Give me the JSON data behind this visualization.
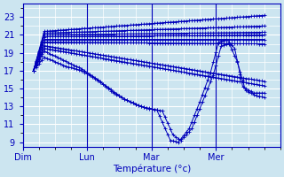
{
  "title": "",
  "xlabel": "Température (°c)",
  "ylabel": "",
  "xlim": [
    0,
    96
  ],
  "ylim": [
    8.5,
    24.5
  ],
  "yticks": [
    9,
    11,
    13,
    15,
    17,
    19,
    21,
    23
  ],
  "xtick_positions": [
    0,
    24,
    48,
    72
  ],
  "xtick_labels": [
    "Dim",
    "Lun",
    "Mar",
    "Mer"
  ],
  "bg_color": "#cce5f0",
  "plot_bg_color": "#cce5f0",
  "grid_color": "#ffffff",
  "line_color": "#0000bb",
  "markersize": 3.5,
  "curves": [
    {
      "waypoints": [
        [
          4,
          17.0
        ],
        [
          8,
          21.3
        ],
        [
          88,
          23.3
        ],
        [
          92,
          23.0
        ]
      ],
      "straight": false
    },
    {
      "waypoints": [
        [
          4,
          17.0
        ],
        [
          8,
          21.1
        ],
        [
          88,
          22.0
        ]
      ],
      "straight": true
    },
    {
      "waypoints": [
        [
          4,
          17.0
        ],
        [
          8,
          21.0
        ],
        [
          88,
          21.3
        ]
      ],
      "straight": true
    },
    {
      "waypoints": [
        [
          4,
          17.0
        ],
        [
          8,
          20.8
        ],
        [
          88,
          21.0
        ]
      ],
      "straight": true
    },
    {
      "waypoints": [
        [
          4,
          17.0
        ],
        [
          8,
          20.5
        ],
        [
          88,
          20.5
        ]
      ],
      "straight": true
    },
    {
      "waypoints": [
        [
          4,
          17.0
        ],
        [
          8,
          20.2
        ],
        [
          88,
          20.0
        ]
      ],
      "straight": true
    },
    {
      "waypoints": [
        [
          4,
          17.0
        ],
        [
          8,
          19.8
        ],
        [
          88,
          16.2
        ]
      ],
      "straight": true
    },
    {
      "waypoints": [
        [
          4,
          17.0
        ],
        [
          8,
          19.5
        ],
        [
          88,
          15.5
        ]
      ],
      "straight": true
    },
    {
      "waypoints": [
        [
          4,
          17.0
        ],
        [
          8,
          19.2
        ],
        [
          25,
          17.5
        ],
        [
          38,
          13.8
        ],
        [
          44,
          13.0
        ],
        [
          52,
          12.8
        ],
        [
          57,
          9.2
        ],
        [
          62,
          9.5
        ],
        [
          66,
          13.5
        ],
        [
          70,
          16.8
        ],
        [
          74,
          20.2
        ],
        [
          78,
          20.0
        ],
        [
          82,
          15.0
        ],
        [
          88,
          14.5
        ],
        [
          92,
          14.2
        ]
      ],
      "straight": false
    },
    {
      "waypoints": [
        [
          4,
          17.0
        ],
        [
          8,
          18.5
        ],
        [
          24,
          16.8
        ],
        [
          38,
          14.0
        ],
        [
          44,
          12.8
        ],
        [
          52,
          12.5
        ],
        [
          57,
          9.0
        ],
        [
          62,
          9.8
        ],
        [
          66,
          13.5
        ],
        [
          70,
          16.5
        ],
        [
          74,
          20.0
        ],
        [
          78,
          19.5
        ],
        [
          82,
          14.8
        ],
        [
          88,
          14.2
        ],
        [
          92,
          14.0
        ]
      ],
      "straight": false
    }
  ],
  "straight_curves": [
    [
      [
        4,
        17.0
      ],
      [
        8,
        21.3
      ],
      [
        90,
        23.2
      ]
    ],
    [
      [
        4,
        17.0
      ],
      [
        8,
        21.1
      ],
      [
        90,
        22.0
      ]
    ],
    [
      [
        4,
        17.0
      ],
      [
        8,
        21.0
      ],
      [
        90,
        21.3
      ]
    ],
    [
      [
        4,
        17.0
      ],
      [
        8,
        20.8
      ],
      [
        90,
        21.0
      ]
    ],
    [
      [
        4,
        17.0
      ],
      [
        8,
        20.5
      ],
      [
        90,
        20.5
      ]
    ],
    [
      [
        4,
        17.0
      ],
      [
        8,
        20.2
      ],
      [
        90,
        20.0
      ]
    ],
    [
      [
        4,
        17.0
      ],
      [
        8,
        19.8
      ],
      [
        90,
        16.0
      ]
    ],
    [
      [
        4,
        17.0
      ],
      [
        8,
        19.5
      ],
      [
        90,
        15.5
      ]
    ]
  ],
  "complex_curves": [
    [
      [
        4,
        17.0
      ],
      [
        8,
        19.2
      ],
      [
        25,
        17.5
      ],
      [
        38,
        13.8
      ],
      [
        44,
        13.0
      ],
      [
        52,
        12.8
      ],
      [
        57,
        9.2
      ],
      [
        62,
        9.5
      ],
      [
        66,
        13.5
      ],
      [
        70,
        16.8
      ],
      [
        74,
        20.2
      ],
      [
        78,
        20.0
      ],
      [
        82,
        15.0
      ],
      [
        88,
        14.5
      ],
      [
        92,
        14.2
      ]
    ],
    [
      [
        4,
        17.0
      ],
      [
        8,
        18.5
      ],
      [
        20,
        16.8
      ],
      [
        30,
        15.5
      ],
      [
        38,
        14.0
      ],
      [
        44,
        12.8
      ],
      [
        52,
        12.5
      ],
      [
        57,
        9.0
      ],
      [
        62,
        9.8
      ],
      [
        66,
        13.5
      ],
      [
        70,
        16.5
      ],
      [
        74,
        20.0
      ],
      [
        78,
        19.5
      ],
      [
        82,
        14.8
      ],
      [
        88,
        14.2
      ],
      [
        92,
        14.0
      ]
    ]
  ]
}
